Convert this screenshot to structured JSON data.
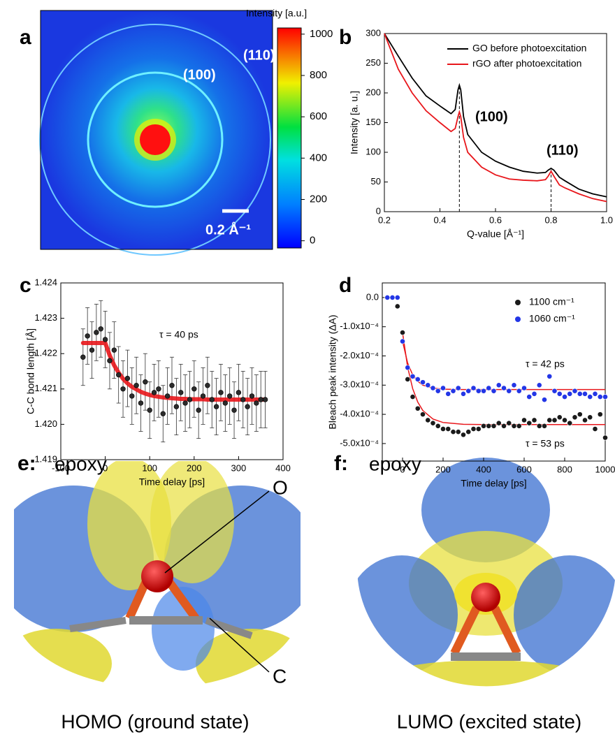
{
  "panel_a": {
    "label": "a",
    "colorbar_label": "Intensity [a.u.]",
    "colorbar_lim": [
      -35,
      1030
    ],
    "colorbar_ticks": [
      0,
      200,
      400,
      600,
      800,
      1000
    ],
    "ring_outer": "(110)",
    "ring_inner": "(100)",
    "scale_bar": "0.2 Å⁻¹"
  },
  "chart_data": [
    {
      "type": "line",
      "label": "b",
      "x_label": "Q-value [Å⁻¹]",
      "y_label": "Intensity [a. u.]",
      "x": [
        0.2,
        0.25,
        0.3,
        0.35,
        0.4,
        0.44,
        0.455,
        0.465,
        0.47,
        0.475,
        0.485,
        0.5,
        0.55,
        0.6,
        0.65,
        0.7,
        0.75,
        0.78,
        0.79,
        0.8,
        0.81,
        0.83,
        0.85,
        0.9,
        0.95,
        1.0
      ],
      "series": [
        {
          "name": "GO before photoexcitation",
          "color": "#000000",
          "values": [
            300,
            262,
            225,
            195,
            178,
            165,
            172,
            205,
            213,
            205,
            160,
            130,
            100,
            85,
            75,
            68,
            65,
            66,
            70,
            73,
            70,
            58,
            52,
            38,
            30,
            25
          ]
        },
        {
          "name": "rGO after photoexcitation",
          "color": "#e8161b",
          "values": [
            300,
            240,
            200,
            170,
            150,
            135,
            140,
            160,
            168,
            160,
            125,
            100,
            75,
            62,
            55,
            53,
            52,
            54,
            60,
            68,
            60,
            45,
            40,
            30,
            22,
            17
          ]
        }
      ],
      "reference_lines": [
        0.47,
        0.8
      ],
      "annotations": [
        "(100)",
        "(110)"
      ],
      "legend": "upper right",
      "xlim": [
        0.2,
        1.0
      ],
      "xticks": [
        0.2,
        0.4,
        0.6,
        0.8,
        {
          "value": 1.0,
          "label": "1.0"
        }
      ],
      "ylim": [
        0,
        300
      ],
      "yticks": [
        0,
        50,
        100,
        150,
        200,
        250,
        300
      ]
    },
    {
      "type": "scatter",
      "label": "c",
      "x_label": "Time delay [ps]",
      "y_label": "C-C bond length [Å]",
      "annotation": "τ = 40 ps",
      "x": [
        -50,
        -40,
        -30,
        -20,
        -10,
        0,
        10,
        20,
        30,
        40,
        50,
        60,
        70,
        80,
        90,
        100,
        110,
        120,
        130,
        140,
        150,
        160,
        170,
        180,
        190,
        200,
        210,
        220,
        230,
        240,
        250,
        260,
        270,
        280,
        290,
        300,
        310,
        320,
        330,
        340,
        350,
        360
      ],
      "color": "#2b2b2b",
      "values": [
        1.4219,
        1.4225,
        1.4221,
        1.4226,
        1.4227,
        1.4224,
        1.4218,
        1.4221,
        1.4214,
        1.421,
        1.4213,
        1.4208,
        1.4211,
        1.4206,
        1.4212,
        1.4204,
        1.4209,
        1.421,
        1.4203,
        1.4208,
        1.4211,
        1.4205,
        1.4209,
        1.4206,
        1.4207,
        1.421,
        1.4204,
        1.4208,
        1.4211,
        1.4207,
        1.4205,
        1.4209,
        1.4206,
        1.4208,
        1.4204,
        1.4209,
        1.4207,
        1.4205,
        1.4208,
        1.4206,
        1.4207,
        1.4207
      ],
      "errors": [
        0.0008,
        0.0008,
        0.0008,
        0.0008,
        0.0008,
        0.0008,
        0.0008,
        0.0008,
        0.0008,
        0.0008,
        0.0008,
        0.0008,
        0.0008,
        0.0008,
        0.0008,
        0.0008,
        0.0008,
        0.0008,
        0.0008,
        0.0008,
        0.0008,
        0.0008,
        0.0008,
        0.0008,
        0.0008,
        0.0008,
        0.0008,
        0.0008,
        0.0008,
        0.0008,
        0.0008,
        0.0008,
        0.0008,
        0.0008,
        0.0008,
        0.0008,
        0.0008,
        0.0008,
        0.0008,
        0.0008,
        0.0008,
        0.0008
      ],
      "fit": {
        "color": "#e8161b",
        "values": [
          1.4223,
          1.4223,
          1.4223,
          1.4223,
          1.4223,
          1.4223,
          1.42195,
          1.42167,
          1.42146,
          1.42129,
          1.42116,
          1.42106,
          1.42099,
          1.42092,
          1.42087,
          1.42083,
          1.4208,
          1.42078,
          1.42076,
          1.42075,
          1.42074,
          1.42073,
          1.42072,
          1.42072,
          1.42071,
          1.42071,
          1.42071,
          1.42071,
          1.4207,
          1.4207,
          1.4207,
          1.4207,
          1.4207,
          1.4207,
          1.4207,
          1.4207,
          1.4207,
          1.4207,
          1.4207,
          1.4207,
          1.4207,
          1.4207
        ]
      },
      "xlim": [
        -100,
        400
      ],
      "xticks": [
        -100,
        0,
        100,
        200,
        300,
        400
      ],
      "ylim": [
        1.419,
        1.424
      ],
      "yticks": [
        1.419,
        {
          "value": 1.42,
          "label": "1.420"
        },
        1.421,
        1.422,
        1.423,
        1.424
      ]
    },
    {
      "type": "scatter",
      "label": "d",
      "x_label": "Time delay [ps]",
      "y_label": "Bleach peak intensity (ΔA)",
      "annotations": [
        "τ = 42 ps",
        "τ = 53 ps"
      ],
      "legend": "upper right",
      "x": [
        -75,
        -50,
        -25,
        0,
        25,
        50,
        75,
        100,
        125,
        150,
        175,
        200,
        225,
        250,
        275,
        300,
        325,
        350,
        375,
        400,
        425,
        450,
        475,
        500,
        525,
        550,
        575,
        600,
        625,
        650,
        675,
        700,
        725,
        750,
        775,
        800,
        825,
        850,
        875,
        900,
        925,
        950,
        975,
        1000
      ],
      "series": [
        {
          "name": "1100 cm⁻¹",
          "color": "#1a1a1a",
          "values": [
            0,
            0,
            -3e-05,
            -0.00012,
            -0.00028,
            -0.00034,
            -0.00038,
            -0.0004,
            -0.00042,
            -0.00043,
            -0.00044,
            -0.00045,
            -0.00045,
            -0.00046,
            -0.00046,
            -0.00047,
            -0.00046,
            -0.00045,
            -0.00045,
            -0.00044,
            -0.00044,
            -0.00044,
            -0.00043,
            -0.00044,
            -0.00043,
            -0.00044,
            -0.00044,
            -0.00042,
            -0.00043,
            -0.00042,
            -0.00044,
            -0.00044,
            -0.00042,
            -0.00042,
            -0.00041,
            -0.00042,
            -0.00043,
            -0.00041,
            -0.0004,
            -0.00042,
            -0.00041,
            -0.00045,
            -0.0004,
            -0.00048
          ]
        },
        {
          "name": "1060 cm⁻¹",
          "color": "#2336e6",
          "values": [
            0,
            0,
            0,
            -0.00015,
            -0.00024,
            -0.00027,
            -0.00028,
            -0.00029,
            -0.0003,
            -0.00031,
            -0.00032,
            -0.00031,
            -0.00033,
            -0.00032,
            -0.00031,
            -0.00033,
            -0.00032,
            -0.00031,
            -0.00032,
            -0.00032,
            -0.00031,
            -0.00032,
            -0.0003,
            -0.00031,
            -0.00032,
            -0.0003,
            -0.00032,
            -0.00031,
            -0.00034,
            -0.00033,
            -0.0003,
            -0.00035,
            -0.00027,
            -0.00032,
            -0.00033,
            -0.00034,
            -0.00033,
            -0.00032,
            -0.00033,
            -0.00033,
            -0.00034,
            -0.00033,
            -0.00034,
            -0.00034
          ]
        }
      ],
      "fits": [
        {
          "color": "#e8161b",
          "x": [
            0,
            25,
            50,
            75,
            100,
            150,
            200,
            300,
            400,
            600,
            800,
            1000
          ],
          "values": [
            -0.00012,
            -0.000238,
            -0.000312,
            -0.000358,
            -0.000387,
            -0.000416,
            -0.000428,
            -0.000434,
            -0.000435,
            -0.000435,
            -0.000435,
            -0.000435
          ]
        },
        {
          "color": "#e8161b",
          "x": [
            0,
            25,
            50,
            75,
            100,
            150,
            200,
            300,
            400,
            600,
            800,
            1000
          ],
          "values": [
            -0.00015,
            -0.000224,
            -0.000265,
            -0.000287,
            -0.0003,
            -0.00031,
            -0.000314,
            -0.000315,
            -0.000315,
            -0.000315,
            -0.000315,
            -0.000315
          ]
        }
      ],
      "xlim": [
        -100,
        1000
      ],
      "xticks": [
        0,
        200,
        400,
        600,
        800,
        1000
      ],
      "ylim": [
        -0.00056,
        5e-05
      ],
      "yticks": [
        {
          "value": 0,
          "label": "0.0"
        },
        {
          "value": -0.0001,
          "label": "-1.0x10⁻⁴"
        },
        {
          "value": -0.0002,
          "label": "-2.0x10⁻⁴"
        },
        {
          "value": -0.0003,
          "label": "-3.0x10⁻⁴"
        },
        {
          "value": -0.0004,
          "label": "-4.0x10⁻⁴"
        },
        {
          "value": -0.0005,
          "label": "-5.0x10⁻⁴"
        }
      ]
    }
  ],
  "panel_e": {
    "label": "e:",
    "title": "epoxy",
    "atom_o": "O",
    "atom_c": "C",
    "caption": "HOMO (ground state)"
  },
  "panel_f": {
    "label": "f:",
    "title": "epoxy",
    "caption": "LUMO (excited state)"
  }
}
